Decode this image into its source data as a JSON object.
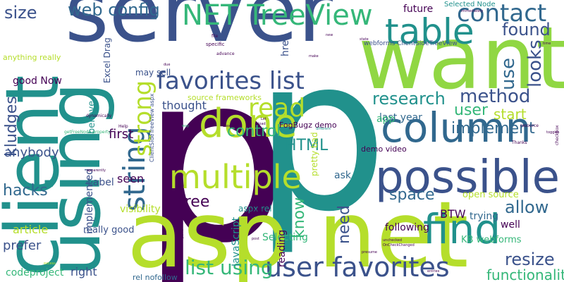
{
  "palette": {
    "background": "#ffffff",
    "purple": "#440154",
    "indigo": "#3b528b",
    "blue": "#31688e",
    "teal": "#21918c",
    "green": "#35b779",
    "lime": "#90d743",
    "yellow": "#b5de2b"
  },
  "words": [
    {
      "id": "p1",
      "text": "p",
      "color": "#440154"
    },
    {
      "id": "p2",
      "text": "p",
      "color": "#21918c"
    },
    {
      "id": "server",
      "text": "server",
      "color": "#3b528b"
    },
    {
      "id": "asp-net",
      "text": "asp net",
      "color": "#b5de2b"
    },
    {
      "id": "want",
      "text": "want",
      "color": "#90d743"
    },
    {
      "id": "client",
      "text": "client",
      "color": "#21918c"
    },
    {
      "id": "using",
      "text": "using",
      "color": "#21918c"
    },
    {
      "id": "string",
      "text": "string",
      "color": "#31688e"
    },
    {
      "id": "possible",
      "text": "possible",
      "color": "#3b528b"
    },
    {
      "id": "find",
      "text": "find",
      "color": "#21918c"
    },
    {
      "id": "column",
      "text": "column",
      "color": "#31688e"
    },
    {
      "id": "done",
      "text": "done",
      "color": "#b5de2b"
    },
    {
      "id": "table",
      "text": "table",
      "color": "#21918c"
    },
    {
      "id": "net-treeview",
      "text": "NET TreeView",
      "color": "#35b779"
    },
    {
      "id": "multiple",
      "text": "multiple",
      "color": "#b5de2b"
    },
    {
      "id": "user-favorites",
      "text": "user favorites",
      "color": "#3b528b"
    },
    {
      "id": "favorites-list",
      "text": "favorites list",
      "color": "#3b528b"
    },
    {
      "id": "web-config",
      "text": "web config",
      "color": "#31688e"
    },
    {
      "id": "read",
      "text": "read",
      "color": "#b5de2b"
    },
    {
      "id": "strong",
      "text": "strong",
      "color": "#b5de2b"
    },
    {
      "id": "list-using",
      "text": "list using",
      "color": "#35b779"
    },
    {
      "id": "contact",
      "text": "contact",
      "color": "#31688e"
    },
    {
      "id": "found",
      "text": "found",
      "color": "#3b528b"
    },
    {
      "id": "looks",
      "text": "looks",
      "color": "#3b528b"
    },
    {
      "id": "use",
      "text": "use",
      "color": "#31688e"
    },
    {
      "id": "research",
      "text": "research",
      "color": "#21918c"
    },
    {
      "id": "method",
      "text": "method",
      "color": "#3b528b"
    },
    {
      "id": "user",
      "text": "user",
      "color": "#35b779"
    },
    {
      "id": "start",
      "text": "start",
      "color": "#b5de2b"
    },
    {
      "id": "implement",
      "text": "implement",
      "color": "#31688e"
    },
    {
      "id": "space",
      "text": "space",
      "color": "#31688e"
    },
    {
      "id": "allow",
      "text": "allow",
      "color": "#31688e"
    },
    {
      "id": "resize",
      "text": "resize",
      "color": "#3b528b"
    },
    {
      "id": "functionality",
      "text": "functionality",
      "color": "#35b779"
    },
    {
      "id": "control",
      "text": "control",
      "color": "#35b779"
    },
    {
      "id": "html",
      "text": "HTML",
      "color": "#21918c"
    },
    {
      "id": "free",
      "text": "free",
      "color": "#440154"
    },
    {
      "id": "need",
      "text": "need",
      "color": "#3b528b"
    },
    {
      "id": "know",
      "text": "know",
      "color": "#35b779"
    },
    {
      "id": "hacks",
      "text": "hacks",
      "color": "#31688e"
    },
    {
      "id": "kludges",
      "text": "kludges",
      "color": "#3b528b"
    },
    {
      "id": "size",
      "text": "size",
      "color": "#3b528b"
    },
    {
      "id": "anybody",
      "text": "anybody",
      "color": "#3b528b"
    },
    {
      "id": "first",
      "text": "first",
      "color": "#440154"
    },
    {
      "id": "thought",
      "text": "thought",
      "color": "#3b528b"
    },
    {
      "id": "future",
      "text": "future",
      "color": "#440154"
    },
    {
      "id": "selected-node",
      "text": "Selected Node",
      "color": "#21918c"
    },
    {
      "id": "webforms-cstv",
      "text": "webforms ClientSideTreeView",
      "color": "#3b528b"
    },
    {
      "id": "fogbugz-demo",
      "text": "FogBugz demo",
      "color": "#440154"
    },
    {
      "id": "demo-video",
      "text": "demo video",
      "color": "#440154"
    },
    {
      "id": "last-year",
      "text": "last year",
      "color": "#31688e"
    },
    {
      "id": "app",
      "text": "app",
      "color": "#35b779"
    },
    {
      "id": "ask",
      "text": "ask",
      "color": "#31688e"
    },
    {
      "id": "btw",
      "text": "BTW",
      "color": "#440154"
    },
    {
      "id": "trying",
      "text": "trying",
      "color": "#31688e"
    },
    {
      "id": "well",
      "text": "well",
      "color": "#440154"
    },
    {
      "id": "following",
      "text": "following",
      "color": "#440154"
    },
    {
      "id": "open-source",
      "text": "open source",
      "color": "#b5de2b"
    },
    {
      "id": "kb-webforms",
      "text": "KB webforms",
      "color": "#35b779"
    },
    {
      "id": "selecting",
      "text": "Selecting",
      "color": "#35b779"
    },
    {
      "id": "reading",
      "text": "reading",
      "color": "#440154"
    },
    {
      "id": "aspx-rel",
      "text": "aspx rel",
      "color": "#21918c"
    },
    {
      "id": "javascript",
      "text": "JavaScript",
      "color": "#21918c"
    },
    {
      "id": "pretty-bad",
      "text": "pretty bad",
      "color": "#b5de2b"
    },
    {
      "id": "source-frameworks",
      "text": "source frameworks",
      "color": "#b5de2b"
    },
    {
      "id": "seen",
      "text": "seen",
      "color": "#440154"
    },
    {
      "id": "visibility",
      "text": "visibility",
      "color": "#b5de2b"
    },
    {
      "id": "really-good",
      "text": "really good",
      "color": "#3b528b"
    },
    {
      "id": "label",
      "text": "Label",
      "color": "#3b528b"
    },
    {
      "id": "implemented",
      "text": "implemented",
      "color": "#3b528b"
    },
    {
      "id": "believe",
      "text": "believe",
      "color": "#21918c"
    },
    {
      "id": "article",
      "text": "article",
      "color": "#b5de2b"
    },
    {
      "id": "prefer",
      "text": "prefer",
      "color": "#3b528b"
    },
    {
      "id": "right",
      "text": "right",
      "color": "#3b528b"
    },
    {
      "id": "codeproject",
      "text": "codeproject",
      "color": "#35b779"
    },
    {
      "id": "rel-nofollow",
      "text": "rel nofollow",
      "color": "#31688e"
    },
    {
      "id": "good-now",
      "text": "good Now",
      "color": "#440154"
    },
    {
      "id": "anything-really",
      "text": "anything really",
      "color": "#b5de2b"
    },
    {
      "id": "excel-drag",
      "text": "Excel Drag",
      "color": "#3b528b"
    },
    {
      "id": "may-sell",
      "text": "may sell",
      "color": "#3b528b"
    },
    {
      "id": "href",
      "text": "href",
      "color": "#3b528b"
    },
    {
      "id": "cstv-aspx",
      "text": "ClientSideTreeView aspx",
      "color": "#3b528b"
    },
    {
      "id": "specific",
      "text": "specific",
      "color": "#440154"
    },
    {
      "id": "advance",
      "text": "advance",
      "color": "#440154"
    },
    {
      "id": "file",
      "text": "file",
      "color": "#440154"
    },
    {
      "id": "due",
      "text": "due",
      "color": "#440154"
    },
    {
      "id": "make",
      "text": "make",
      "color": "#440154"
    },
    {
      "id": "new",
      "text": "new",
      "color": "#440154"
    },
    {
      "id": "time",
      "text": "time",
      "color": "#440154"
    },
    {
      "id": "resource",
      "text": "resource",
      "color": "#440154"
    },
    {
      "id": "thanks",
      "text": "Thanks",
      "color": "#440154"
    },
    {
      "id": "checkbox",
      "text": "checkbox",
      "color": "#440154"
    },
    {
      "id": "different",
      "text": "different",
      "color": "#21918c"
    },
    {
      "id": "choose",
      "text": "choose",
      "color": "#440154"
    },
    {
      "id": "run",
      "text": "run",
      "color": "#440154"
    },
    {
      "id": "way",
      "text": "way",
      "color": "#35b779"
    },
    {
      "id": "help",
      "text": "Help",
      "color": "#440154"
    },
    {
      "id": "dynamically",
      "text": "dynamically",
      "color": "#440154"
    },
    {
      "id": "getfreenode",
      "text": "getFreeNode property",
      "color": "#35b779"
    },
    {
      "id": "let",
      "text": "Let",
      "color": "#440154"
    },
    {
      "id": "load",
      "text": "load",
      "color": "#440154"
    },
    {
      "id": "post",
      "text": "post",
      "color": "#440154"
    },
    {
      "id": "point",
      "text": "point",
      "color": "#440154"
    },
    {
      "id": "closed",
      "text": "closed",
      "color": "#440154"
    },
    {
      "id": "entries",
      "text": "entries",
      "color": "#440154"
    },
    {
      "id": "presume",
      "text": "presume",
      "color": "#440154"
    },
    {
      "id": "oncheckchanged",
      "text": "OnCheckChanged",
      "color": "#440154"
    },
    {
      "id": "excess",
      "text": "excess",
      "color": "#b5de2b"
    },
    {
      "id": "apparently",
      "text": "apparently",
      "color": "#440154"
    },
    {
      "id": "immediately",
      "text": "immediately",
      "color": "#440154"
    },
    {
      "id": "toggles",
      "text": "toggles",
      "color": "#440154"
    },
    {
      "id": "state",
      "text": "state",
      "color": "#440154"
    },
    {
      "id": "unchecked",
      "text": "unchecked",
      "color": "#440154"
    }
  ]
}
